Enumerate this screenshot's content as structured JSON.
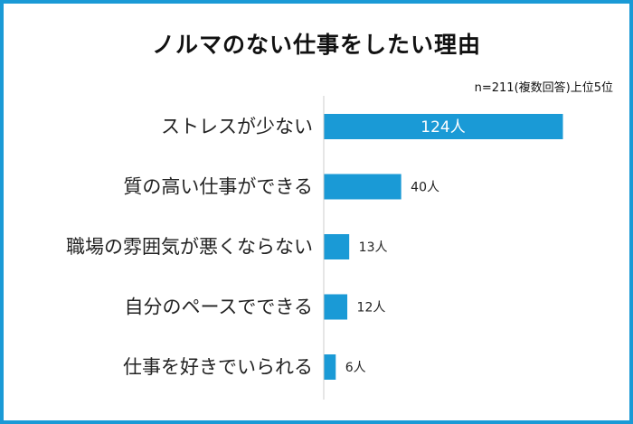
{
  "chart_data": {
    "type": "bar",
    "orientation": "horizontal",
    "title": "ノルマのない仕事をしたい理由",
    "note": "n=211(複数回答)上位5位",
    "categories": [
      "ストレスが少ない",
      "質の高い仕事ができる",
      "職場の雰囲気が悪くならない",
      "自分のペースでできる",
      "仕事を好きでいられる"
    ],
    "values": [
      124,
      40,
      13,
      12,
      6
    ],
    "value_labels": [
      "124人",
      "40人",
      "13人",
      "12人",
      "6人"
    ],
    "unit": "人",
    "xlim": [
      0,
      124
    ],
    "grid": false,
    "legend": "none",
    "colors": {
      "bar": "#1a9ad6",
      "frame": "#1a9ad6",
      "axis": "#cccccc"
    }
  }
}
